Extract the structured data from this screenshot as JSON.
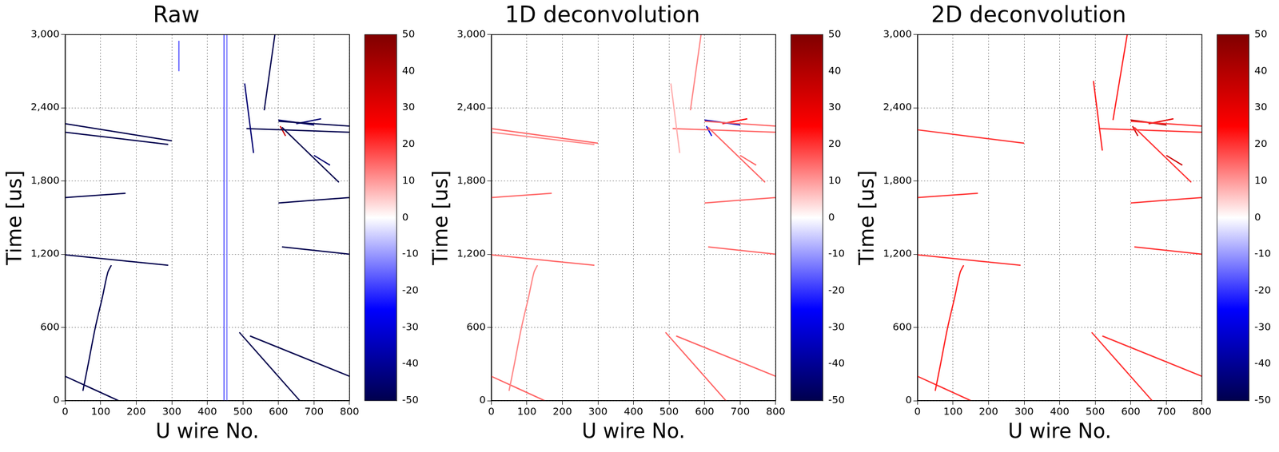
{
  "chart_data": [
    {
      "type": "heatmap",
      "title": "Raw",
      "x_label": "U wire No.",
      "y_label": "Time [us]",
      "xlim": [
        0,
        800
      ],
      "xticks": [
        0,
        100,
        200,
        300,
        400,
        500,
        600,
        700,
        800
      ],
      "ylim": [
        0,
        3000
      ],
      "yticks": [
        0,
        600,
        1200,
        1800,
        2400,
        3000
      ],
      "grid": true,
      "colorbar": {
        "range": [
          -50,
          50
        ],
        "ticks": [
          -50,
          -40,
          -30,
          -20,
          -10,
          0,
          10,
          20,
          30,
          40,
          50
        ]
      },
      "tracks": [
        {
          "x": [
            0,
            300
          ],
          "y": [
            2270,
            2130
          ],
          "value": -50
        },
        {
          "x": [
            0,
            290
          ],
          "y": [
            2200,
            2100
          ],
          "value": -50
        },
        {
          "x": [
            0,
            170
          ],
          "y": [
            1665,
            1700
          ],
          "value": -50
        },
        {
          "x": [
            0,
            290
          ],
          "y": [
            1195,
            1110
          ],
          "value": -50
        },
        {
          "x": [
            50,
            65,
            85,
            105,
            120,
            130
          ],
          "y": [
            80,
            300,
            600,
            850,
            1050,
            1110
          ],
          "value": -50
        },
        {
          "x": [
            0,
            150
          ],
          "y": [
            200,
            0
          ],
          "value": -50
        },
        {
          "x": [
            490,
            660
          ],
          "y": [
            560,
            0
          ],
          "value": -50
        },
        {
          "x": [
            520,
            800
          ],
          "y": [
            530,
            200
          ],
          "value": -50
        },
        {
          "x": [
            560,
            590
          ],
          "y": [
            2380,
            3000
          ],
          "value": -50
        },
        {
          "x": [
            505,
            530
          ],
          "y": [
            2600,
            2030
          ],
          "value": -45
        },
        {
          "x": [
            510,
            800
          ],
          "y": [
            2230,
            2200
          ],
          "value": -50
        },
        {
          "x": [
            600,
            800
          ],
          "y": [
            2290,
            2250
          ],
          "value": -50
        },
        {
          "x": [
            610,
            770
          ],
          "y": [
            2240,
            1790
          ],
          "value": -50
        },
        {
          "x": [
            600,
            800
          ],
          "y": [
            1620,
            1665
          ],
          "value": -50
        },
        {
          "x": [
            610,
            800
          ],
          "y": [
            1260,
            1200
          ],
          "value": -50
        },
        {
          "x": [
            600,
            700
          ],
          "y": [
            2300,
            2260
          ],
          "value": -45
        },
        {
          "x": [
            605,
            620
          ],
          "y": [
            2250,
            2170
          ],
          "value": 35
        },
        {
          "x": [
            650,
            720
          ],
          "y": [
            2270,
            2310
          ],
          "value": -45
        },
        {
          "x": [
            700,
            745
          ],
          "y": [
            2010,
            1930
          ],
          "value": -45
        },
        {
          "x": [
            447,
            447
          ],
          "y": [
            0,
            3000
          ],
          "value": -15
        },
        {
          "x": [
            455,
            455
          ],
          "y": [
            0,
            3000
          ],
          "value": -12
        },
        {
          "x": [
            320,
            320
          ],
          "y": [
            2700,
            2950
          ],
          "value": -15
        }
      ]
    },
    {
      "type": "heatmap",
      "title": "1D deconvolution",
      "x_label": "U wire No.",
      "y_label": "Time [us]",
      "xlim": [
        0,
        800
      ],
      "xticks": [
        0,
        100,
        200,
        300,
        400,
        500,
        600,
        700,
        800
      ],
      "ylim": [
        0,
        3000
      ],
      "yticks": [
        0,
        600,
        1200,
        1800,
        2400,
        3000
      ],
      "grid": true,
      "colorbar": {
        "range": [
          -50,
          50
        ],
        "ticks": [
          -50,
          -40,
          -30,
          -20,
          -10,
          0,
          10,
          20,
          30,
          40,
          50
        ]
      },
      "tracks": [
        {
          "x": [
            0,
            300
          ],
          "y": [
            2230,
            2110
          ],
          "value": 15
        },
        {
          "x": [
            0,
            290
          ],
          "y": [
            2200,
            2100
          ],
          "value": 12
        },
        {
          "x": [
            0,
            170
          ],
          "y": [
            1665,
            1700
          ],
          "value": 15
        },
        {
          "x": [
            0,
            290
          ],
          "y": [
            1195,
            1110
          ],
          "value": 15
        },
        {
          "x": [
            50,
            65,
            85,
            105,
            120,
            130
          ],
          "y": [
            80,
            300,
            600,
            850,
            1050,
            1110
          ],
          "value": 12
        },
        {
          "x": [
            0,
            150
          ],
          "y": [
            200,
            0
          ],
          "value": 15
        },
        {
          "x": [
            490,
            660
          ],
          "y": [
            560,
            0
          ],
          "value": 15
        },
        {
          "x": [
            520,
            800
          ],
          "y": [
            530,
            200
          ],
          "value": 15
        },
        {
          "x": [
            560,
            590
          ],
          "y": [
            2380,
            3000
          ],
          "value": 12
        },
        {
          "x": [
            505,
            530
          ],
          "y": [
            2600,
            2030
          ],
          "value": 8
        },
        {
          "x": [
            510,
            800
          ],
          "y": [
            2230,
            2200
          ],
          "value": 15
        },
        {
          "x": [
            600,
            800
          ],
          "y": [
            2290,
            2250
          ],
          "value": 15
        },
        {
          "x": [
            610,
            770
          ],
          "y": [
            2240,
            1790
          ],
          "value": 15
        },
        {
          "x": [
            600,
            800
          ],
          "y": [
            1620,
            1665
          ],
          "value": 15
        },
        {
          "x": [
            610,
            800
          ],
          "y": [
            1260,
            1200
          ],
          "value": 15
        },
        {
          "x": [
            600,
            700
          ],
          "y": [
            2300,
            2260
          ],
          "value": -35
        },
        {
          "x": [
            605,
            620
          ],
          "y": [
            2250,
            2170
          ],
          "value": -30
        },
        {
          "x": [
            650,
            720
          ],
          "y": [
            2270,
            2310
          ],
          "value": 25
        },
        {
          "x": [
            700,
            745
          ],
          "y": [
            2010,
            1930
          ],
          "value": 15
        }
      ]
    },
    {
      "type": "heatmap",
      "title": "2D deconvolution",
      "x_label": "U wire No.",
      "y_label": "Time [us]",
      "xlim": [
        0,
        800
      ],
      "xticks": [
        0,
        100,
        200,
        300,
        400,
        500,
        600,
        700,
        800
      ],
      "ylim": [
        0,
        3000
      ],
      "yticks": [
        0,
        600,
        1200,
        1800,
        2400,
        3000
      ],
      "grid": true,
      "colorbar": {
        "range": [
          -50,
          50
        ],
        "ticks": [
          -50,
          -40,
          -30,
          -20,
          -10,
          0,
          10,
          20,
          30,
          40,
          50
        ]
      },
      "tracks": [
        {
          "x": [
            0,
            300
          ],
          "y": [
            2220,
            2110
          ],
          "value": 20
        },
        {
          "x": [
            0,
            170
          ],
          "y": [
            1665,
            1700
          ],
          "value": 20
        },
        {
          "x": [
            0,
            290
          ],
          "y": [
            1195,
            1110
          ],
          "value": 20
        },
        {
          "x": [
            50,
            65,
            85,
            105,
            120,
            130
          ],
          "y": [
            80,
            300,
            600,
            850,
            1050,
            1110
          ],
          "value": 22
        },
        {
          "x": [
            0,
            150
          ],
          "y": [
            200,
            0
          ],
          "value": 20
        },
        {
          "x": [
            490,
            660
          ],
          "y": [
            560,
            0
          ],
          "value": 20
        },
        {
          "x": [
            520,
            800
          ],
          "y": [
            530,
            200
          ],
          "value": 20
        },
        {
          "x": [
            550,
            590
          ],
          "y": [
            2300,
            3000
          ],
          "value": 22
        },
        {
          "x": [
            495,
            520
          ],
          "y": [
            2620,
            2050
          ],
          "value": 22
        },
        {
          "x": [
            510,
            800
          ],
          "y": [
            2230,
            2200
          ],
          "value": 20
        },
        {
          "x": [
            600,
            800
          ],
          "y": [
            2290,
            2250
          ],
          "value": 20
        },
        {
          "x": [
            610,
            770
          ],
          "y": [
            2240,
            1790
          ],
          "value": 20
        },
        {
          "x": [
            600,
            800
          ],
          "y": [
            1620,
            1665
          ],
          "value": 20
        },
        {
          "x": [
            610,
            800
          ],
          "y": [
            1260,
            1200
          ],
          "value": 20
        },
        {
          "x": [
            600,
            700
          ],
          "y": [
            2300,
            2260
          ],
          "value": 40
        },
        {
          "x": [
            605,
            620
          ],
          "y": [
            2250,
            2170
          ],
          "value": 35
        },
        {
          "x": [
            650,
            720
          ],
          "y": [
            2270,
            2310
          ],
          "value": 30
        },
        {
          "x": [
            700,
            745
          ],
          "y": [
            2010,
            1930
          ],
          "value": 35
        }
      ]
    }
  ]
}
